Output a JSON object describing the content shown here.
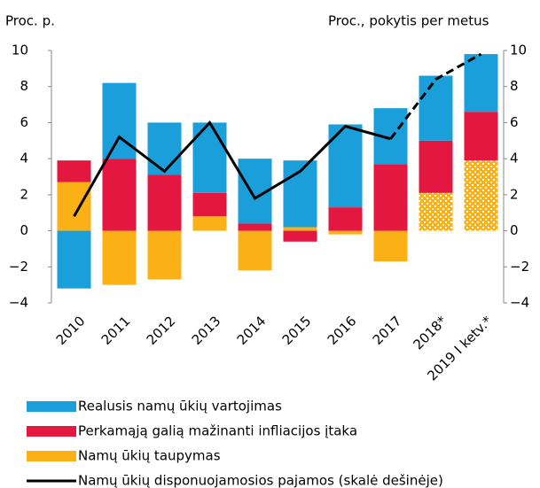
{
  "chart_data": {
    "type": "bar",
    "left_axis_label": "Proc. p.",
    "right_axis_label": "Proc., pokytis per metus",
    "categories": [
      "2010",
      "2011",
      "2012",
      "2013",
      "2014",
      "2015",
      "2016",
      "2017",
      "2018*",
      "2019 I ketv.*"
    ],
    "series": [
      {
        "name": "Realusis namų ūkių vartojimas",
        "color": "#1a9fdb",
        "values": [
          -3.2,
          4.2,
          2.9,
          3.9,
          3.6,
          3.7,
          4.6,
          3.1,
          3.6,
          3.2
        ]
      },
      {
        "name": "Perkamąją galią mažinanti infliacijos įtaka",
        "color": "#e3173f",
        "values": [
          1.2,
          4.0,
          3.1,
          1.3,
          0.4,
          -0.6,
          1.3,
          3.7,
          2.9,
          2.7
        ]
      },
      {
        "name": "Namų ūkių taupymas",
        "color": "#fbb116",
        "values": [
          2.7,
          -3.0,
          -2.7,
          0.8,
          -2.2,
          0.2,
          -0.2,
          -1.7,
          2.1,
          3.9
        ]
      },
      {
        "name": "Namų ūkių disponuojamosios pajamos (skalė dešinėje)",
        "color": "#000000",
        "type": "line",
        "axis": "y2",
        "values": [
          0.8,
          5.2,
          3.3,
          6.0,
          1.8,
          3.3,
          5.8,
          5.1,
          8.4,
          9.8
        ]
      }
    ],
    "projection_start": 8,
    "ylim": [
      -4,
      10
    ],
    "yticks": [
      {
        "value": -4,
        "label": "−4"
      },
      {
        "value": -2,
        "label": "−2"
      },
      0,
      2,
      4,
      6,
      8,
      10
    ],
    "y2lim": [
      -4,
      10
    ],
    "y2ticks": [
      {
        "value": -4,
        "label": "−4"
      },
      {
        "value": -2,
        "label": "−2"
      },
      0,
      2,
      4,
      6,
      8,
      10
    ]
  }
}
